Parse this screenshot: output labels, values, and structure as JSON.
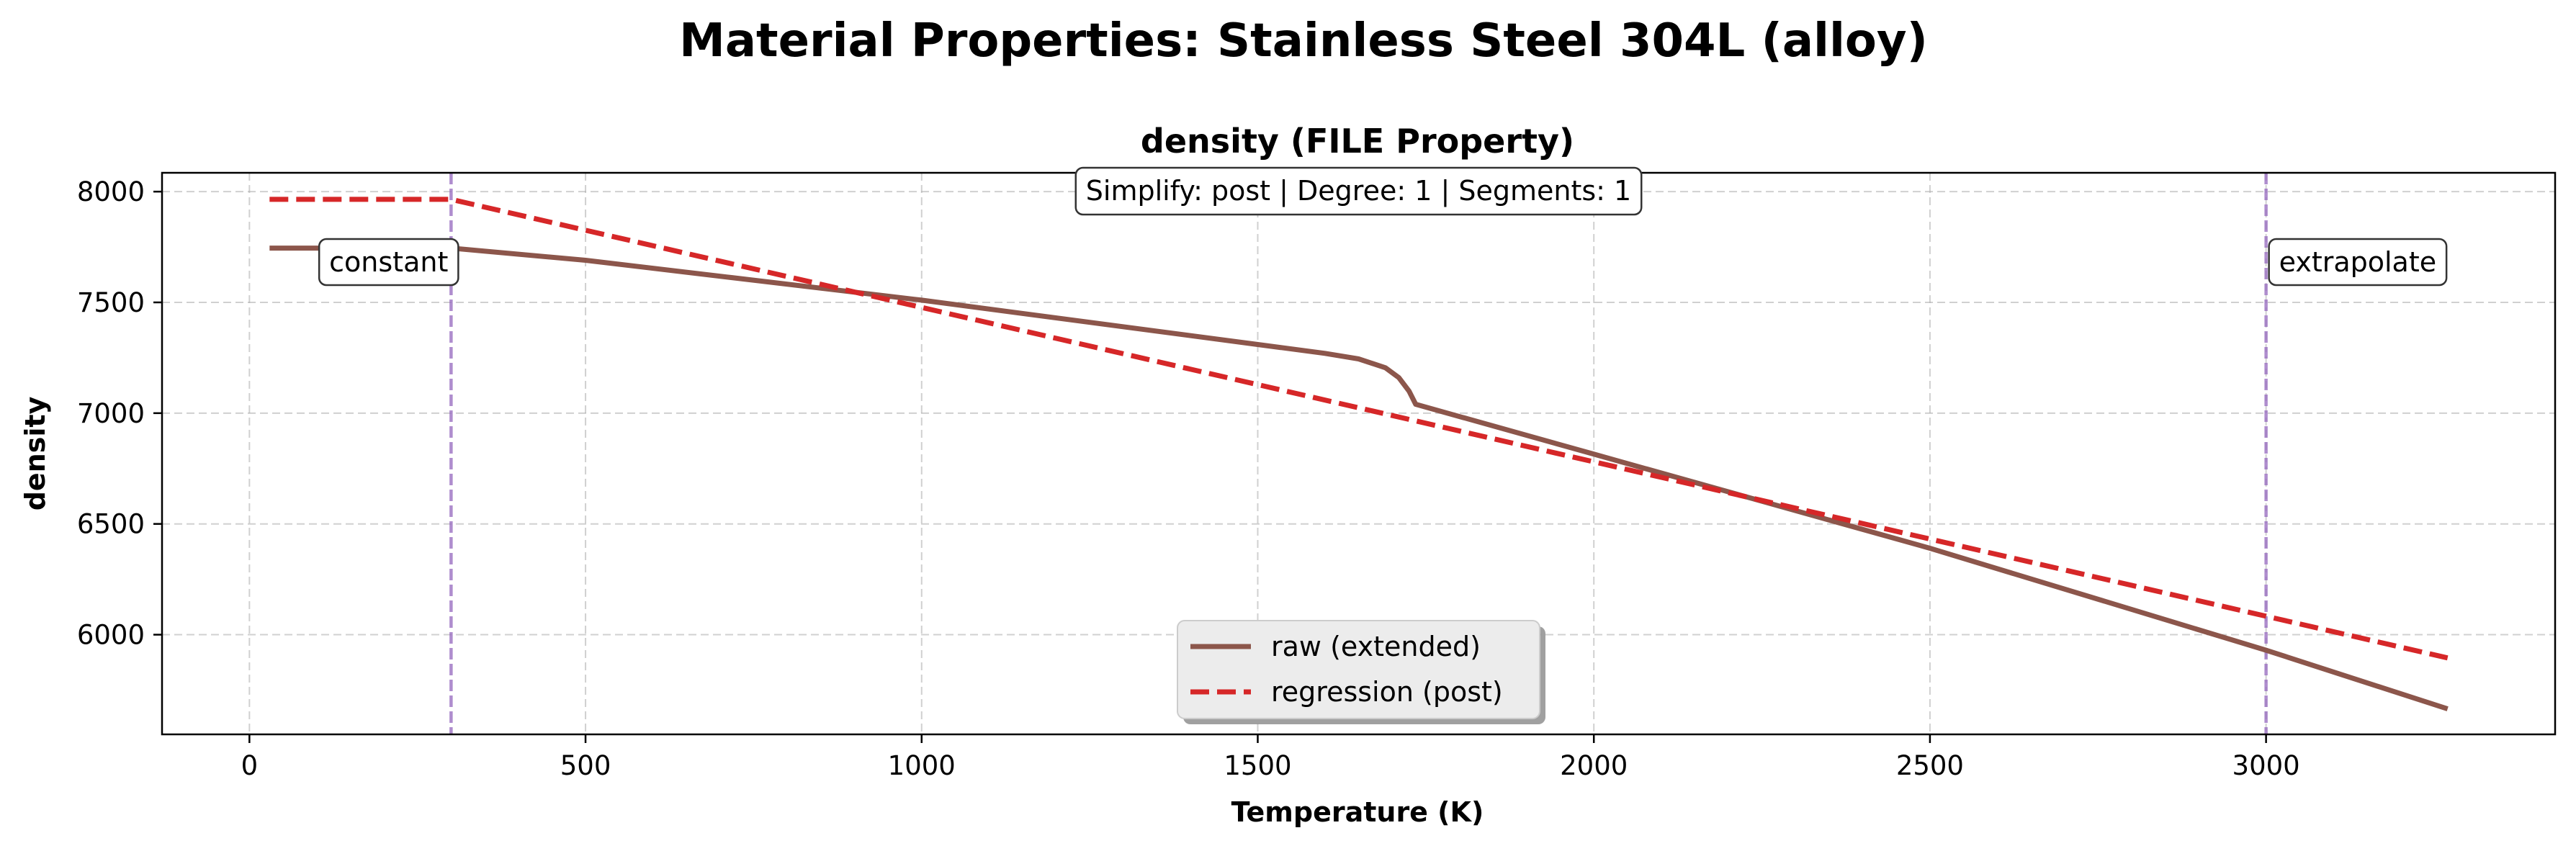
{
  "figure": {
    "suptitle": "Material Properties: Stainless Steel 304L (alloy)"
  },
  "chart_data": {
    "type": "line",
    "title": "density (FILE Property)",
    "xlabel": "Temperature (K)",
    "ylabel": "density",
    "xlim": [
      -130,
      3430
    ],
    "ylim": [
      5550,
      8085
    ],
    "xticks": [
      0,
      500,
      1000,
      1500,
      2000,
      2500,
      3000
    ],
    "yticks": [
      6000,
      6500,
      7000,
      7500,
      8000
    ],
    "grid": true,
    "legend_position": "lower-center",
    "info_box": "Simplify: post | Degree: 1 | Segments: 1",
    "vertical_lines": [
      {
        "x": 300,
        "label": "constant",
        "color": "#9467bd"
      },
      {
        "x": 3000,
        "label": "extrapolate",
        "color": "#9467bd"
      }
    ],
    "series": [
      {
        "name": "raw (extended)",
        "color": "#8c564b",
        "style": "solid",
        "points": [
          [
            30,
            7745
          ],
          [
            300,
            7745
          ],
          [
            500,
            7690
          ],
          [
            1000,
            7510
          ],
          [
            1500,
            7310
          ],
          [
            1600,
            7270
          ],
          [
            1650,
            7245
          ],
          [
            1690,
            7205
          ],
          [
            1710,
            7160
          ],
          [
            1725,
            7100
          ],
          [
            1735,
            7040
          ],
          [
            2000,
            6815
          ],
          [
            2500,
            6390
          ],
          [
            3000,
            5930
          ],
          [
            3270,
            5665
          ]
        ]
      },
      {
        "name": "regression (post)",
        "color": "#d62728",
        "style": "dashed",
        "points": [
          [
            30,
            7965
          ],
          [
            300,
            7965
          ],
          [
            3270,
            5895
          ]
        ]
      }
    ]
  }
}
